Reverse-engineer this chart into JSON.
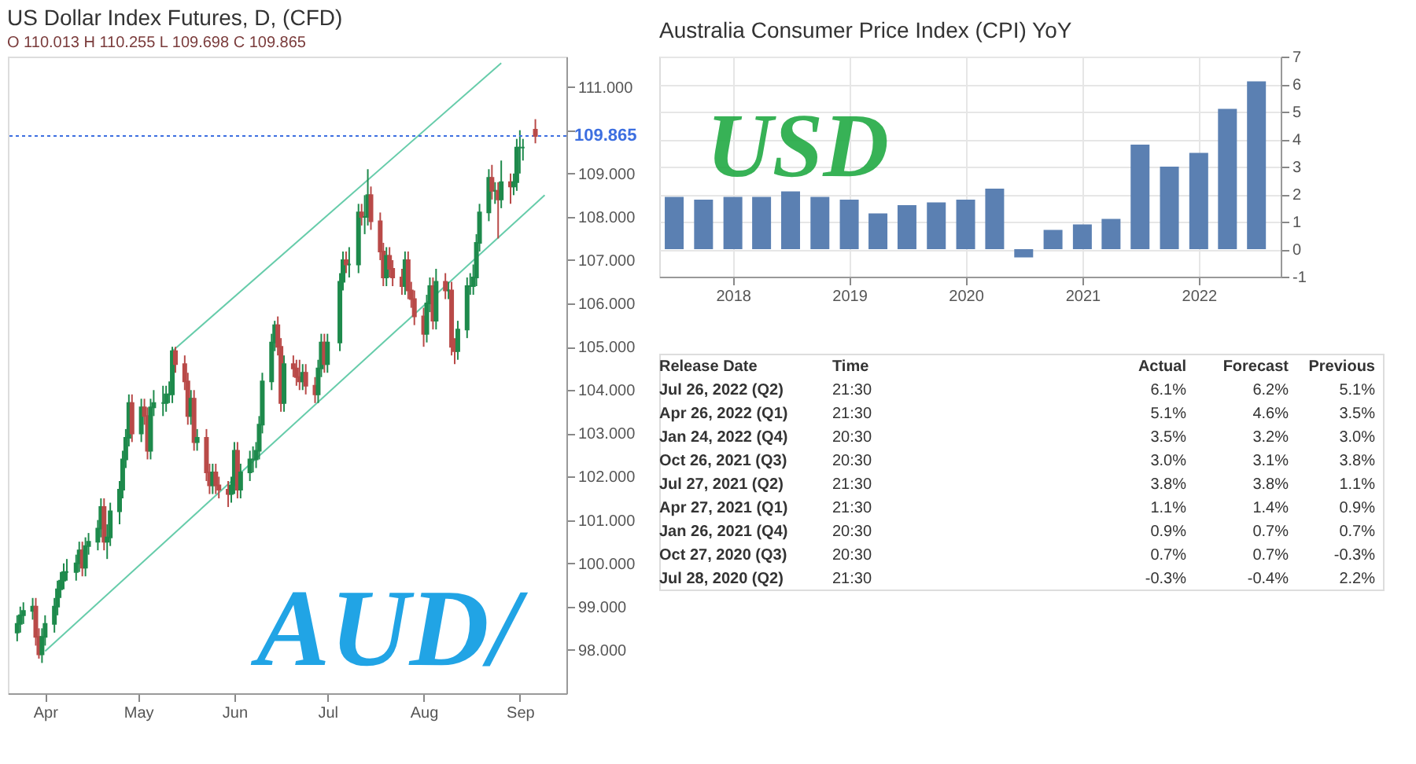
{
  "chart_data": [
    {
      "type": "candlestick",
      "title": "US Dollar Index Futures, D, (CFD)",
      "subtitle": "O 110.013 H 110.255 L 109.698 C 109.865",
      "x": [
        "2022-03-23",
        "2022-03-24",
        "2022-03-25",
        "2022-03-28",
        "2022-03-29",
        "2022-03-30",
        "2022-03-31",
        "2022-04-01",
        "2022-04-04",
        "2022-04-05",
        "2022-04-06",
        "2022-04-07",
        "2022-04-08",
        "2022-04-11",
        "2022-04-12",
        "2022-04-13",
        "2022-04-14",
        "2022-04-15",
        "2022-04-18",
        "2022-04-19",
        "2022-04-20",
        "2022-04-21",
        "2022-04-22",
        "2022-04-25",
        "2022-04-26",
        "2022-04-27",
        "2022-04-28",
        "2022-04-29",
        "2022-05-02",
        "2022-05-03",
        "2022-05-04",
        "2022-05-05",
        "2022-05-06",
        "2022-05-09",
        "2022-05-10",
        "2022-05-11",
        "2022-05-12",
        "2022-05-13",
        "2022-05-16",
        "2022-05-17",
        "2022-05-18",
        "2022-05-19",
        "2022-05-20",
        "2022-05-23",
        "2022-05-24",
        "2022-05-25",
        "2022-05-26",
        "2022-05-27",
        "2022-05-30",
        "2022-05-31",
        "2022-06-01",
        "2022-06-02",
        "2022-06-03",
        "2022-06-06",
        "2022-06-07",
        "2022-06-08",
        "2022-06-09",
        "2022-06-10",
        "2022-06-13",
        "2022-06-14",
        "2022-06-15",
        "2022-06-16",
        "2022-06-17",
        "2022-06-20",
        "2022-06-21",
        "2022-06-22",
        "2022-06-23",
        "2022-06-24",
        "2022-06-27",
        "2022-06-28",
        "2022-06-29",
        "2022-06-30",
        "2022-07-01",
        "2022-07-05",
        "2022-07-06",
        "2022-07-07",
        "2022-07-08",
        "2022-07-11",
        "2022-07-12",
        "2022-07-13",
        "2022-07-14",
        "2022-07-15",
        "2022-07-18",
        "2022-07-19",
        "2022-07-20",
        "2022-07-21",
        "2022-07-22",
        "2022-07-25",
        "2022-07-26",
        "2022-07-27",
        "2022-07-28",
        "2022-07-29",
        "2022-08-01",
        "2022-08-02",
        "2022-08-03",
        "2022-08-04",
        "2022-08-05",
        "2022-08-08",
        "2022-08-09",
        "2022-08-10",
        "2022-08-11",
        "2022-08-12",
        "2022-08-15",
        "2022-08-16",
        "2022-08-17",
        "2022-08-18",
        "2022-08-19",
        "2022-08-22",
        "2022-08-23",
        "2022-08-24",
        "2022-08-25",
        "2022-08-26",
        "2022-08-29",
        "2022-08-30",
        "2022-08-31",
        "2022-09-01",
        "2022-09-02",
        "2022-09-06"
      ],
      "ohlc": [
        [
          98.4,
          98.8,
          98.2,
          98.6
        ],
        [
          98.6,
          99.0,
          98.4,
          98.8
        ],
        [
          98.8,
          99.1,
          98.6,
          98.9
        ],
        [
          98.9,
          99.2,
          98.7,
          99.0
        ],
        [
          99.0,
          99.2,
          98.1,
          98.3
        ],
        [
          98.3,
          98.5,
          97.8,
          97.9
        ],
        [
          97.9,
          98.5,
          97.7,
          98.3
        ],
        [
          98.3,
          98.8,
          98.1,
          98.6
        ],
        [
          98.6,
          99.2,
          98.4,
          99.0
        ],
        [
          99.0,
          99.6,
          98.8,
          99.4
        ],
        [
          99.4,
          99.8,
          99.2,
          99.6
        ],
        [
          99.6,
          100.0,
          99.4,
          99.8
        ],
        [
          99.8,
          100.1,
          99.6,
          99.8
        ],
        [
          99.8,
          100.2,
          99.6,
          100.0
        ],
        [
          100.0,
          100.5,
          99.8,
          100.3
        ],
        [
          100.3,
          100.5,
          99.7,
          99.9
        ],
        [
          99.9,
          100.6,
          99.7,
          100.4
        ],
        [
          100.4,
          100.7,
          100.2,
          100.5
        ],
        [
          100.5,
          101.0,
          100.3,
          100.8
        ],
        [
          100.8,
          101.5,
          100.6,
          101.3
        ],
        [
          101.3,
          101.5,
          100.3,
          100.5
        ],
        [
          100.5,
          100.9,
          100.1,
          100.6
        ],
        [
          100.6,
          101.4,
          100.4,
          101.2
        ],
        [
          101.2,
          101.9,
          100.9,
          101.7
        ],
        [
          101.7,
          102.6,
          101.5,
          102.4
        ],
        [
          102.4,
          103.1,
          102.2,
          102.9
        ],
        [
          102.9,
          103.9,
          102.7,
          103.7
        ],
        [
          103.7,
          103.9,
          102.8,
          103.0
        ],
        [
          103.0,
          103.8,
          102.8,
          103.6
        ],
        [
          103.6,
          103.8,
          103.2,
          103.4
        ],
        [
          103.4,
          103.6,
          102.4,
          102.6
        ],
        [
          102.6,
          103.8,
          102.4,
          103.6
        ],
        [
          103.6,
          104.0,
          103.4,
          103.7
        ],
        [
          103.7,
          104.1,
          103.4,
          103.7
        ],
        [
          103.7,
          104.1,
          103.5,
          103.9
        ],
        [
          103.9,
          104.2,
          103.7,
          103.9
        ],
        [
          103.9,
          105.0,
          103.7,
          104.9
        ],
        [
          104.9,
          105.0,
          104.4,
          104.6
        ],
        [
          104.6,
          104.8,
          104.0,
          104.2
        ],
        [
          104.2,
          104.4,
          103.2,
          103.4
        ],
        [
          103.4,
          104.0,
          103.2,
          103.8
        ],
        [
          103.8,
          104.0,
          102.6,
          102.8
        ],
        [
          102.8,
          103.1,
          102.6,
          102.9
        ],
        [
          102.9,
          103.1,
          101.9,
          102.1
        ],
        [
          102.1,
          102.3,
          101.6,
          101.8
        ],
        [
          101.8,
          102.3,
          101.6,
          102.1
        ],
        [
          102.1,
          102.3,
          101.6,
          101.8
        ],
        [
          101.8,
          102.0,
          101.5,
          101.7
        ],
        [
          101.7,
          101.9,
          101.3,
          101.6
        ],
        [
          101.6,
          102.0,
          101.4,
          101.8
        ],
        [
          101.8,
          102.8,
          101.6,
          102.6
        ],
        [
          102.6,
          102.8,
          101.5,
          101.7
        ],
        [
          101.7,
          102.3,
          101.5,
          102.1
        ],
        [
          102.1,
          102.6,
          101.9,
          102.4
        ],
        [
          102.4,
          102.7,
          102.1,
          102.4
        ],
        [
          102.4,
          102.8,
          102.2,
          102.6
        ],
        [
          102.6,
          103.4,
          102.4,
          103.2
        ],
        [
          103.2,
          104.4,
          103.0,
          104.2
        ],
        [
          104.2,
          105.3,
          104.0,
          105.1
        ],
        [
          105.1,
          105.6,
          104.9,
          105.5
        ],
        [
          105.5,
          105.7,
          104.8,
          105.0
        ],
        [
          105.0,
          105.2,
          103.5,
          103.7
        ],
        [
          103.7,
          104.8,
          103.5,
          104.6
        ],
        [
          104.6,
          104.8,
          104.3,
          104.5
        ],
        [
          104.5,
          104.7,
          104.1,
          104.3
        ],
        [
          104.3,
          104.7,
          104.0,
          104.2
        ],
        [
          104.2,
          104.6,
          104.0,
          104.4
        ],
        [
          104.4,
          104.6,
          103.9,
          104.1
        ],
        [
          104.1,
          104.3,
          103.7,
          103.9
        ],
        [
          103.9,
          104.7,
          103.7,
          104.5
        ],
        [
          104.5,
          105.3,
          104.3,
          105.1
        ],
        [
          105.1,
          105.3,
          104.4,
          104.6
        ],
        [
          104.6,
          105.3,
          104.4,
          105.1
        ],
        [
          105.1,
          106.7,
          104.9,
          106.5
        ],
        [
          106.5,
          107.2,
          106.3,
          107.0
        ],
        [
          107.0,
          107.2,
          106.7,
          106.9
        ],
        [
          106.9,
          107.3,
          106.6,
          106.9
        ],
        [
          106.9,
          108.3,
          106.7,
          108.1
        ],
        [
          108.1,
          108.3,
          107.8,
          108.0
        ],
        [
          108.0,
          108.5,
          107.6,
          108.0
        ],
        [
          108.0,
          109.1,
          107.8,
          108.5
        ],
        [
          108.5,
          108.7,
          107.7,
          107.9
        ],
        [
          107.9,
          108.1,
          107.0,
          107.2
        ],
        [
          107.2,
          107.4,
          106.4,
          106.6
        ],
        [
          106.6,
          107.3,
          106.4,
          107.1
        ],
        [
          107.1,
          107.3,
          106.6,
          106.8
        ],
        [
          106.8,
          107.0,
          106.4,
          106.6
        ],
        [
          106.6,
          106.8,
          106.2,
          106.4
        ],
        [
          106.4,
          107.2,
          106.2,
          107.0
        ],
        [
          107.0,
          107.2,
          106.1,
          106.3
        ],
        [
          106.3,
          106.5,
          105.9,
          106.1
        ],
        [
          106.1,
          106.3,
          105.5,
          105.7
        ],
        [
          105.7,
          105.9,
          105.0,
          105.3
        ],
        [
          105.3,
          106.2,
          105.1,
          106.0
        ],
        [
          106.0,
          106.6,
          105.8,
          106.4
        ],
        [
          106.4,
          106.6,
          105.4,
          105.6
        ],
        [
          105.6,
          106.8,
          105.4,
          106.5
        ],
        [
          106.5,
          106.7,
          106.1,
          106.3
        ],
        [
          106.3,
          106.5,
          106.1,
          106.3
        ],
        [
          106.3,
          106.5,
          104.8,
          105.0
        ],
        [
          105.0,
          105.2,
          104.6,
          104.9
        ],
        [
          104.9,
          105.6,
          104.7,
          105.4
        ],
        [
          105.4,
          106.6,
          105.2,
          106.4
        ],
        [
          106.4,
          106.7,
          106.2,
          106.4
        ],
        [
          106.4,
          106.9,
          106.2,
          106.6
        ],
        [
          106.6,
          107.6,
          106.4,
          107.4
        ],
        [
          107.4,
          108.3,
          107.2,
          108.1
        ],
        [
          108.1,
          109.1,
          107.9,
          108.9
        ],
        [
          108.9,
          109.2,
          108.4,
          108.6
        ],
        [
          108.6,
          108.8,
          108.3,
          108.6
        ],
        [
          108.6,
          108.8,
          107.5,
          108.4
        ],
        [
          108.4,
          109.3,
          108.2,
          108.8
        ],
        [
          108.8,
          109.0,
          108.3,
          108.7
        ],
        [
          108.7,
          109.0,
          108.5,
          108.8
        ],
        [
          108.8,
          109.8,
          108.6,
          109.6
        ],
        [
          109.6,
          110.0,
          109.0,
          109.6
        ],
        [
          109.6,
          109.8,
          109.3,
          109.6
        ],
        [
          110.013,
          110.255,
          109.698,
          109.865
        ]
      ],
      "series": [
        {
          "type": "line",
          "color": "#66ccaa",
          "x": [
            "2022-05-12",
            "2022-08-26"
          ],
          "values": [
            104.9,
            111.55
          ]
        },
        {
          "type": "line",
          "color": "#66ccaa",
          "x": [
            "2022-04-01",
            "2022-09-09"
          ],
          "values": [
            97.97,
            108.5
          ]
        }
      ],
      "ref_lines": [
        {
          "axis": "y",
          "value": 109.865,
          "label": "109.865",
          "color": "#3d6fe0",
          "line_style": "dotted"
        }
      ],
      "xlim": [
        "2022-03-20",
        "2022-09-16"
      ],
      "xticks": [
        {
          "value": "2022-04-01",
          "label": "Apr"
        },
        {
          "value": "2022-05-01",
          "label": "May"
        },
        {
          "value": "2022-06-01",
          "label": "Jun"
        },
        {
          "value": "2022-07-01",
          "label": "Jul"
        },
        {
          "value": "2022-08-01",
          "label": "Aug"
        },
        {
          "value": "2022-09-01",
          "label": "Sep"
        }
      ],
      "ylim": [
        97,
        111.7
      ],
      "yticks": [
        {
          "value": 98,
          "label": "98.000"
        },
        {
          "value": 99,
          "label": "99.000"
        },
        {
          "value": 100,
          "label": "100.000"
        },
        {
          "value": 101,
          "label": "101.000"
        },
        {
          "value": 102,
          "label": "102.000"
        },
        {
          "value": 103,
          "label": "103.000"
        },
        {
          "value": 104,
          "label": "104.000"
        },
        {
          "value": 105,
          "label": "105.000"
        },
        {
          "value": 106,
          "label": "106.000"
        },
        {
          "value": 107,
          "label": "107.000"
        },
        {
          "value": 108,
          "label": "108.000"
        },
        {
          "value": 109,
          "label": "109.000"
        },
        {
          "value": 110,
          "label": null
        },
        {
          "value": 111,
          "label": "111.000"
        }
      ],
      "grid": false,
      "annotations": [
        "AUD/"
      ]
    },
    {
      "type": "bar",
      "title": "Australia Consumer Price Index (CPI) YoY",
      "x": [
        "2017-07",
        "2017-10",
        "2018-01",
        "2018-04",
        "2018-07",
        "2018-10",
        "2019-01",
        "2019-04",
        "2019-07",
        "2019-10",
        "2020-01",
        "2020-04",
        "2020-07",
        "2020-10",
        "2021-01",
        "2021-04",
        "2021-07",
        "2021-10",
        "2022-01",
        "2022-04",
        "2022-07"
      ],
      "series": [
        {
          "color": "#5b80b2",
          "values": [
            1.9,
            1.8,
            1.9,
            1.9,
            2.1,
            1.9,
            1.8,
            1.3,
            1.6,
            1.7,
            1.8,
            2.2,
            -0.3,
            0.7,
            0.9,
            1.1,
            3.8,
            3.0,
            3.5,
            5.1,
            6.1
          ]
        }
      ],
      "xlim": [
        "2017-05-15",
        "2022-09-15"
      ],
      "xticks": [
        {
          "value": "2018-01-01",
          "label": "2018"
        },
        {
          "value": "2019-01-01",
          "label": "2019"
        },
        {
          "value": "2020-01-01",
          "label": "2020"
        },
        {
          "value": "2021-01-01",
          "label": "2021"
        },
        {
          "value": "2022-01-01",
          "label": "2022"
        }
      ],
      "ylim": [
        -1,
        7
      ],
      "yticks": [
        -1,
        0,
        1,
        2,
        3,
        4,
        5,
        6,
        7
      ],
      "grid": true,
      "annotations": [
        "USD"
      ]
    },
    {
      "type": "other",
      "annotations": [
        "Release Date",
        "Time",
        "Actual",
        "Forecast",
        "Previous",
        "Jul 26, 2022 (Q2)",
        "21:30",
        "6.1%",
        "6.2%",
        "5.1%",
        "Apr 26, 2022 (Q1)",
        "21:30",
        "5.1%",
        "4.6%",
        "3.5%",
        "Jan 24, 2022 (Q4)",
        "20:30",
        "3.5%",
        "3.2%",
        "3.0%",
        "Oct 26, 2021 (Q3)",
        "20:30",
        "3.0%",
        "3.1%",
        "3.8%",
        "Jul 27, 2021 (Q2)",
        "21:30",
        "3.8%",
        "3.8%",
        "1.1%",
        "Apr 27, 2021 (Q1)",
        "21:30",
        "1.1%",
        "1.4%",
        "0.9%",
        "Jan 26, 2021 (Q4)",
        "20:30",
        "0.9%",
        "0.7%",
        "0.7%",
        "Oct 27, 2020 (Q3)",
        "20:30",
        "0.7%",
        "0.7%",
        "-0.3%",
        "Jul 28, 2020 (Q2)",
        "21:30",
        "-0.3%",
        "-0.4%",
        "2.2%"
      ]
    }
  ]
}
